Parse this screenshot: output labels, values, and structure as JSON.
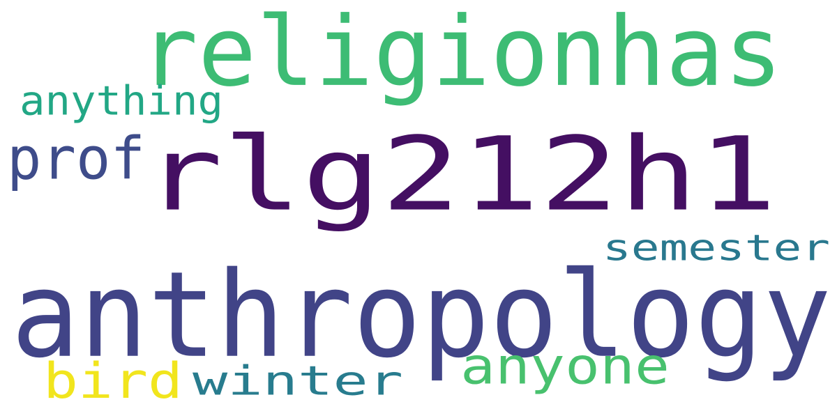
{
  "words": [
    {
      "id": "rlg212h1",
      "text": "rlg212h1",
      "color": "#440f62"
    },
    {
      "id": "anthropology",
      "text": "anthropology",
      "color": "#414487"
    },
    {
      "id": "religionhas",
      "text": "religionhas",
      "color": "#3dbc74"
    },
    {
      "id": "semester",
      "text": "semester",
      "color": "#29788e"
    },
    {
      "id": "anyone",
      "text": "anyone",
      "color": "#48c16e"
    },
    {
      "id": "winter",
      "text": "winter",
      "color": "#287c8e"
    },
    {
      "id": "prof",
      "text": "prof",
      "color": "#3e4c8a"
    },
    {
      "id": "anything",
      "text": "anything",
      "color": "#22a785"
    },
    {
      "id": "bird",
      "text": "bird",
      "color": "#f1e51d"
    }
  ]
}
